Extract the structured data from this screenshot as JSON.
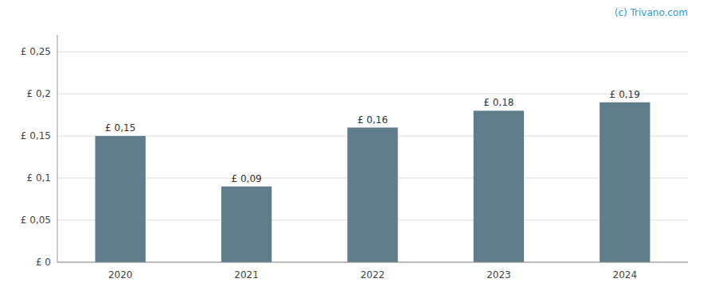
{
  "chart_data": {
    "type": "bar",
    "categories": [
      "2020",
      "2021",
      "2022",
      "2023",
      "2024"
    ],
    "values": [
      0.15,
      0.09,
      0.16,
      0.18,
      0.19
    ],
    "value_labels": [
      "£ 0,15",
      "£ 0,09",
      "£ 0,16",
      "£ 0,18",
      "£ 0,19"
    ],
    "data_labels": true,
    "color": "#607d8b",
    "ylim": [
      0,
      0.27
    ],
    "yticks": [
      {
        "value": 0,
        "label": "£ 0"
      },
      {
        "value": 0.05,
        "label": "£ 0,05"
      },
      {
        "value": 0.1,
        "label": "£ 0,1"
      },
      {
        "value": 0.15,
        "label": "£ 0,15"
      },
      {
        "value": 0.2,
        "label": "£ 0,2"
      },
      {
        "value": 0.25,
        "label": "£ 0,25"
      }
    ],
    "grid": true,
    "annotations": [
      "(c) Trivano.com"
    ]
  }
}
